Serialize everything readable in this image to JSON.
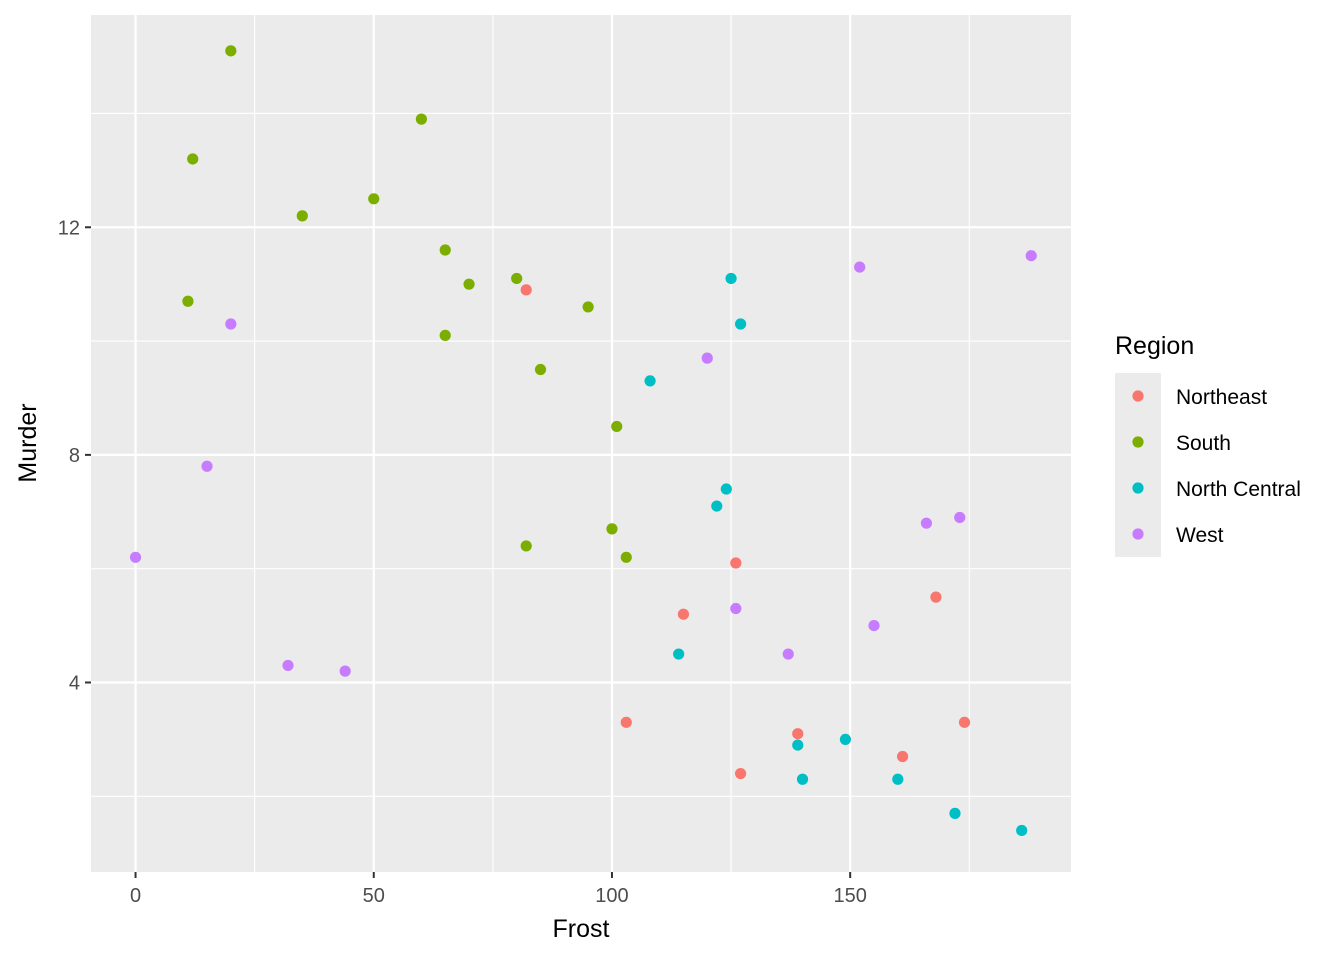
{
  "chart_data": {
    "type": "scatter",
    "xlabel": "Frost",
    "ylabel": "Murder",
    "xlim": [
      -9.35,
      196.35
    ],
    "ylim": [
      0.67,
      15.73
    ],
    "x_ticks": [
      0,
      50,
      100,
      150
    ],
    "x_tick_labels": [
      "0",
      "50",
      "100",
      "150"
    ],
    "x_minor_ticks": [
      25,
      75,
      125,
      175
    ],
    "y_ticks": [
      4,
      8,
      12
    ],
    "y_tick_labels": [
      "4",
      "8",
      "12"
    ],
    "y_minor_ticks": [
      2,
      6,
      10,
      14
    ],
    "grid": true,
    "legend": {
      "title": "Region",
      "position": "right"
    },
    "series": [
      {
        "name": "Northeast",
        "color": "#F8766D",
        "x": [
          82,
          126,
          115,
          168,
          103,
          139,
          127,
          161,
          174
        ],
        "y": [
          10.9,
          6.1,
          5.2,
          5.5,
          3.3,
          3.1,
          2.4,
          2.7,
          3.3
        ]
      },
      {
        "name": "South",
        "color": "#7CAE00",
        "x": [
          20,
          12,
          60,
          50,
          35,
          65,
          80,
          11,
          70,
          95,
          65,
          85,
          101,
          100,
          82,
          103
        ],
        "y": [
          15.1,
          13.2,
          13.9,
          12.5,
          12.2,
          11.6,
          11.1,
          10.7,
          11.0,
          10.6,
          10.1,
          9.5,
          8.5,
          6.7,
          6.4,
          6.2
        ]
      },
      {
        "name": "North Central",
        "color": "#00BFC4",
        "x": [
          125,
          127,
          108,
          124,
          122,
          114,
          139,
          149,
          140,
          160,
          172,
          186
        ],
        "y": [
          11.1,
          10.3,
          9.3,
          7.4,
          7.1,
          4.5,
          2.9,
          3.0,
          2.3,
          2.3,
          1.7,
          1.4
        ]
      },
      {
        "name": "West",
        "color": "#C77CFF",
        "x": [
          152,
          188,
          20,
          120,
          15,
          0,
          166,
          173,
          126,
          155,
          137,
          32,
          44
        ],
        "y": [
          11.3,
          11.5,
          10.3,
          9.7,
          7.8,
          6.2,
          6.8,
          6.9,
          5.3,
          5.0,
          4.5,
          4.3,
          4.2
        ]
      }
    ]
  },
  "colors": {
    "panel_background": "#EBEBEB",
    "grid_major": "#FFFFFF",
    "legend_key_background": "#EBEBEB"
  }
}
